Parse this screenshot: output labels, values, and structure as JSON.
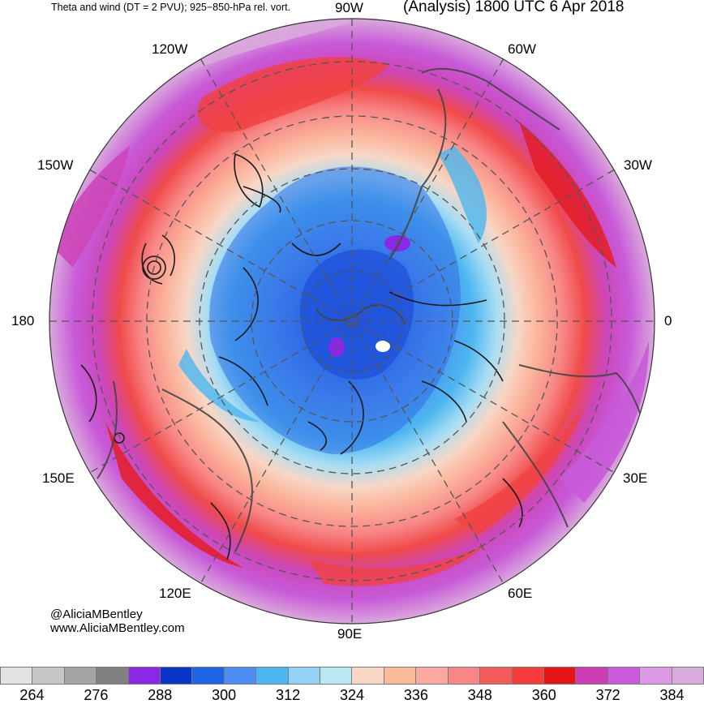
{
  "header": {
    "title_left": "Theta and wind (DT = 2 PVU); 925−850-hPa rel. vort.",
    "title_right": "(Analysis) 1800 UTC 6 Apr 2018"
  },
  "longitude_labels": {
    "n": "90W",
    "nne": "60W",
    "ene": "30W",
    "e": "0",
    "ese": "30E",
    "sse": "60E",
    "s": "90E",
    "ssw": "120E",
    "wsw": "150E",
    "w": "180",
    "wnw": "150W",
    "nnw": "120W"
  },
  "credit": {
    "handle": "@AliciaMBentley",
    "website": "www.AliciaMBentley.com"
  },
  "colorbar": {
    "colors": [
      "#e3e3e3",
      "#c6c6c6",
      "#a4a4a4",
      "#808080",
      "#8a28e6",
      "#0a35c8",
      "#1e64e6",
      "#4d8cf0",
      "#4cb6f0",
      "#94d2f5",
      "#b9e7f2",
      "#f9d7c4",
      "#fbbb9b",
      "#fba89e",
      "#f98686",
      "#f55a5a",
      "#f43c3c",
      "#e61414",
      "#cc3cb4",
      "#cc5adc",
      "#dc9ae6",
      "#d9aadc"
    ],
    "labels": [
      "264",
      "276",
      "288",
      "300",
      "312",
      "324",
      "336",
      "348",
      "360",
      "372",
      "384"
    ]
  }
}
